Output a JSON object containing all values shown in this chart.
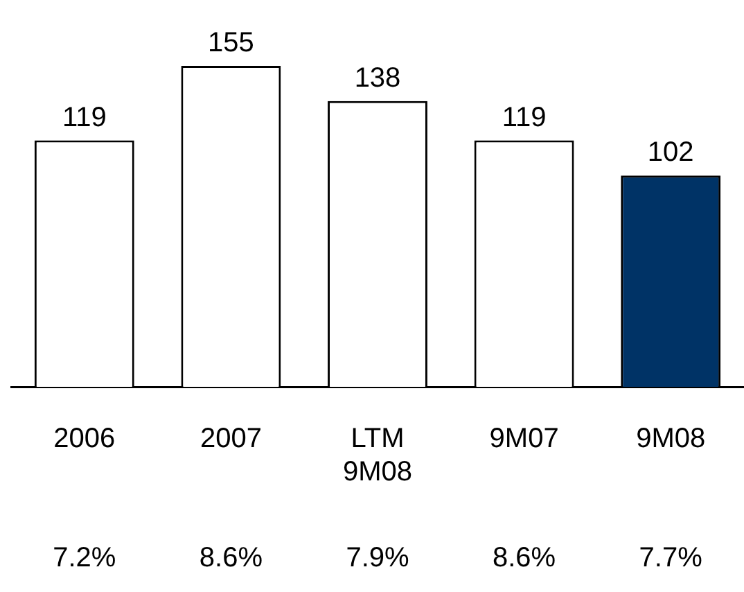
{
  "chart_data": {
    "type": "bar",
    "categories": [
      "2006",
      "2007",
      "LTM 9M08",
      "9M07",
      "9M08"
    ],
    "values": [
      119,
      155,
      138,
      119,
      102
    ],
    "colors": [
      "#ffffff",
      "#ffffff",
      "#ffffff",
      "#ffffff",
      "#003366"
    ],
    "data_labels": true,
    "grid": false,
    "legend": false,
    "annotations": [
      "7.2%",
      "8.6%",
      "7.9%",
      "8.6%",
      "7.7%"
    ]
  }
}
